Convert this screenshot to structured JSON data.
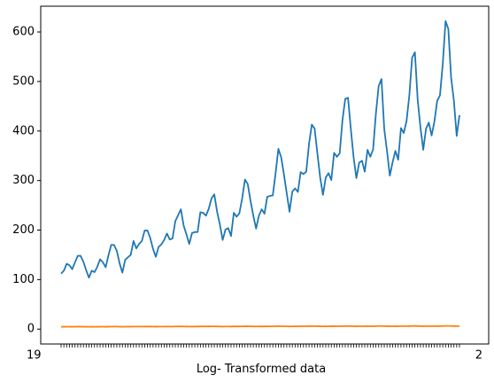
{
  "chart_data": {
    "type": "line",
    "title": "",
    "xlabel": "Log- Transformed data",
    "ylabel": "",
    "xlim": [
      0,
      143
    ],
    "ylim": [
      -30,
      652
    ],
    "yticks": [
      0,
      100,
      200,
      300,
      400,
      500,
      600
    ],
    "grid": false,
    "legend": "none",
    "x_tick_labels_start": "19",
    "x_tick_labels_end": "2",
    "series": [
      {
        "color": "#1f77b4",
        "values": [
          112,
          118,
          132,
          129,
          121,
          135,
          148,
          148,
          136,
          119,
          104,
          118,
          115,
          126,
          141,
          135,
          125,
          149,
          170,
          170,
          158,
          133,
          114,
          140,
          145,
          150,
          178,
          163,
          172,
          178,
          199,
          199,
          184,
          162,
          146,
          166,
          171,
          180,
          193,
          181,
          183,
          218,
          230,
          242,
          209,
          191,
          172,
          194,
          196,
          196,
          236,
          235,
          229,
          243,
          264,
          272,
          237,
          211,
          180,
          201,
          204,
          188,
          235,
          227,
          234,
          264,
          302,
          293,
          259,
          229,
          203,
          229,
          242,
          233,
          267,
          269,
          270,
          315,
          364,
          347,
          312,
          274,
          237,
          278,
          284,
          277,
          317,
          313,
          318,
          374,
          413,
          405,
          355,
          306,
          271,
          306,
          315,
          301,
          356,
          348,
          355,
          422,
          465,
          467,
          404,
          347,
          305,
          336,
          340,
          318,
          362,
          348,
          363,
          435,
          491,
          505,
          404,
          359,
          310,
          337,
          360,
          342,
          406,
          396,
          420,
          472,
          548,
          559,
          463,
          407,
          362,
          405,
          417,
          391,
          419,
          461,
          472,
          535,
          622,
          606,
          508,
          461,
          390,
          432
        ]
      },
      {
        "color": "#ff7f0e",
        "values": [
          4.72,
          4.77,
          4.88,
          4.86,
          4.8,
          4.91,
          5.0,
          5.0,
          4.91,
          4.78,
          4.64,
          4.77,
          4.74,
          4.84,
          4.95,
          4.91,
          4.83,
          5.0,
          5.14,
          5.14,
          5.06,
          4.89,
          4.74,
          4.94,
          4.98,
          5.01,
          5.18,
          5.09,
          5.15,
          5.18,
          5.29,
          5.29,
          5.21,
          5.09,
          4.98,
          5.11,
          5.14,
          5.19,
          5.26,
          5.2,
          5.21,
          5.38,
          5.44,
          5.49,
          5.34,
          5.25,
          5.15,
          5.27,
          5.28,
          5.28,
          5.46,
          5.46,
          5.43,
          5.49,
          5.58,
          5.61,
          5.47,
          5.35,
          5.19,
          5.3,
          5.32,
          5.24,
          5.46,
          5.42,
          5.46,
          5.58,
          5.71,
          5.68,
          5.56,
          5.43,
          5.31,
          5.43,
          5.49,
          5.45,
          5.59,
          5.59,
          5.6,
          5.75,
          5.9,
          5.85,
          5.74,
          5.61,
          5.47,
          5.63,
          5.65,
          5.62,
          5.76,
          5.75,
          5.76,
          5.92,
          6.02,
          6.0,
          5.87,
          5.72,
          5.6,
          5.72,
          5.75,
          5.71,
          5.87,
          5.85,
          5.87,
          6.05,
          6.14,
          6.15,
          6.0,
          5.85,
          5.72,
          5.82,
          5.83,
          5.76,
          5.89,
          5.85,
          5.89,
          6.08,
          6.2,
          6.22,
          6.0,
          5.88,
          5.74,
          5.82,
          5.89,
          5.83,
          6.01,
          5.98,
          6.04,
          6.16,
          6.31,
          6.33,
          6.14,
          6.01,
          5.89,
          6.0,
          6.03,
          5.97,
          6.04,
          6.13,
          6.16,
          6.28,
          6.43,
          6.41,
          6.23,
          6.13,
          5.97,
          6.07
        ]
      }
    ]
  }
}
